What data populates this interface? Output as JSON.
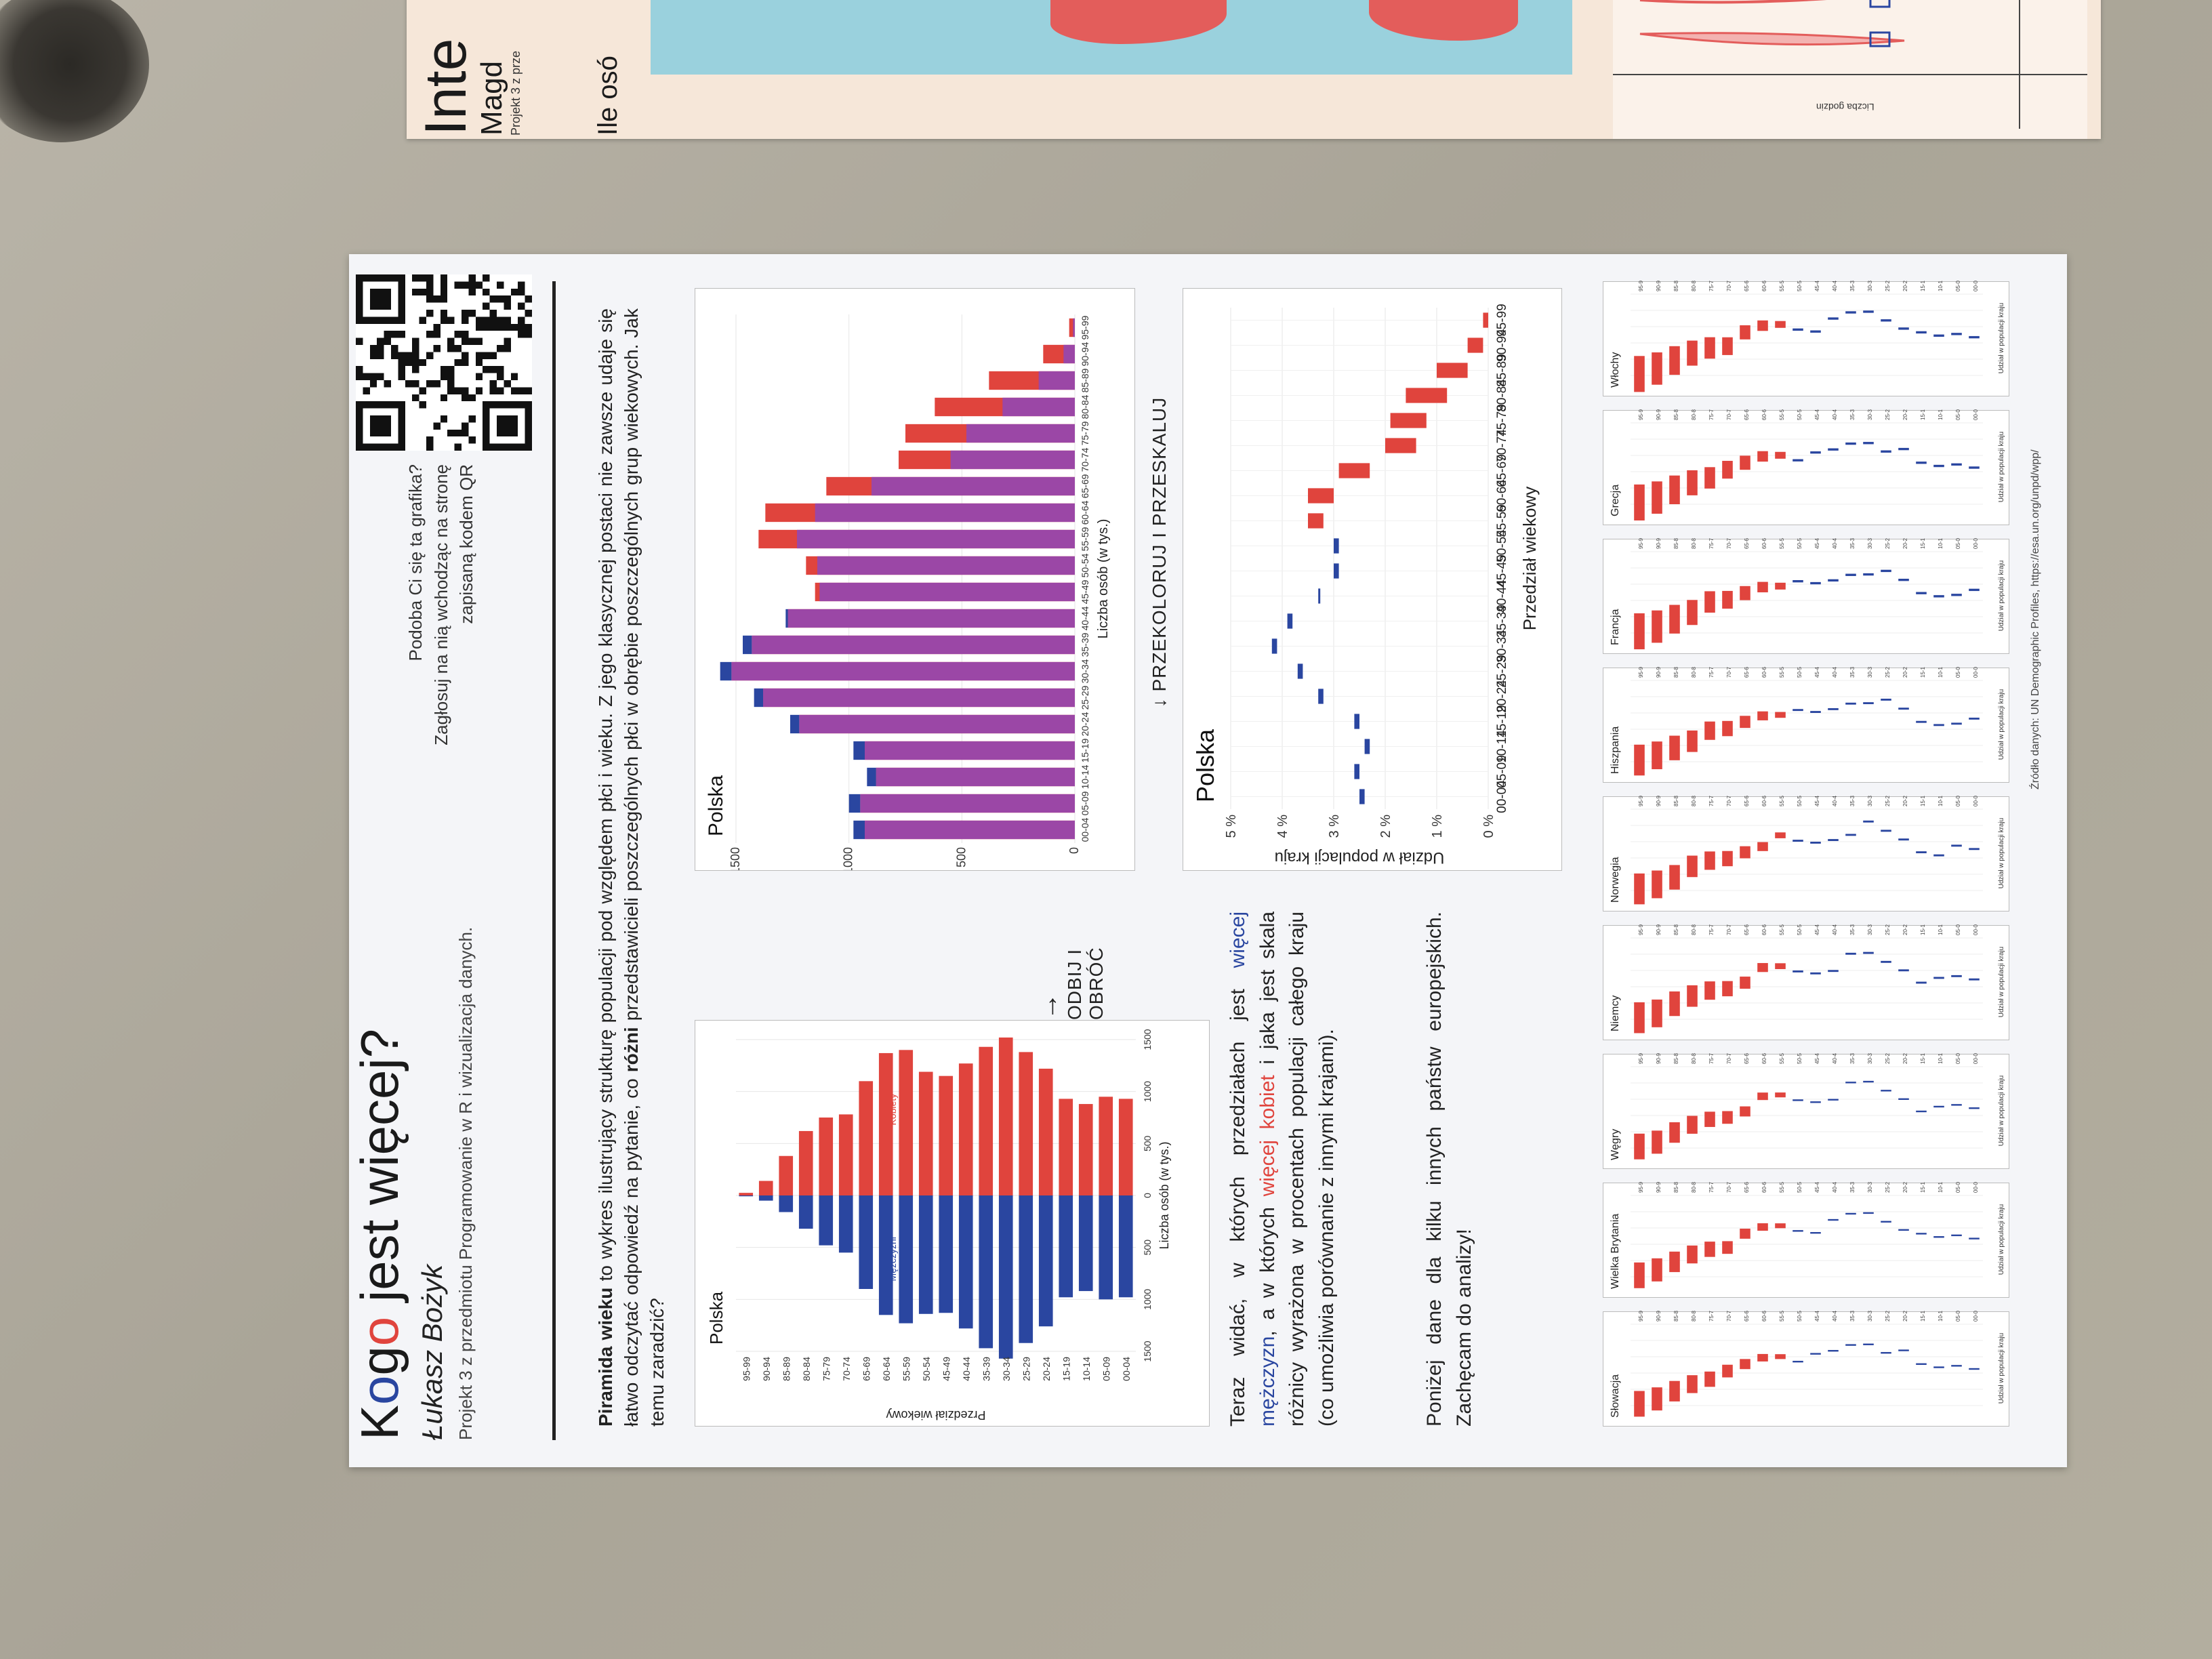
{
  "poster": {
    "title_pre": "K",
    "title_g1": "o",
    "title_g2": "g",
    "title_g3": "o",
    "title_post": " jest więcej?",
    "author": "Łukasz Bożyk",
    "subtitle": "Projekt 3 z przedmiotu Programowanie w R i wizualizacja danych.",
    "qr_text_1": "Podoba Ci się ta grafika?",
    "qr_text_2": "Zagłosuj na nią wchodząc na stronę",
    "qr_text_3": "zapisaną kodem QR",
    "intro_bold_1": "Piramida wieku",
    "intro_1": " to wykres ilustrujący strukturę populacji pod względem płci i wieku. Z jego klasycznej postaci nie zawsze udaje się łatwo odczytać odpowiedź na pytanie, co ",
    "intro_bold_2": "różni",
    "intro_2": " przedstawicieli poszczególnych płci w obrębie poszczególnych grup wiekowych. Jak temu zaradzić?",
    "arrow1": "ODBIJ I OBRÓĆ",
    "arrow2": "PRZEKOLORUJ I PRZESKALUJ",
    "text2_a": "Teraz widać, w których przedziałach jest ",
    "text2_m": "więcej mężczyzn",
    "text2_b": ", a w których ",
    "text2_k": "więcej kobiet",
    "text2_c": " i jaka jest skala różnicy wyrażona w procentach populacji całego kraju (co umożliwia porównanie z innymi krajami).",
    "text3": "Poniżej dane dla kilku innych państw europejskich. Zachęcam do analizy!",
    "source": "Źródło danych: UN Demographic Profiles, https://esa.un.org/unpd/wpp/"
  },
  "poster2": {
    "title": "Inte",
    "subtitle": "Magd",
    "subtitle2": "Projekt 3 z prze",
    "question": "Ile osó",
    "ylabel": "Liczba godzin"
  },
  "chart_data": [
    {
      "type": "bar",
      "title": "Polska",
      "xlabel": "Liczba osób (w tys.)",
      "ylabel": "Przedział wiekowy",
      "legend": [
        "Mężczyźni",
        "Kobiety"
      ],
      "categories": [
        "00-04",
        "05-09",
        "10-14",
        "15-19",
        "20-24",
        "25-29",
        "30-34",
        "35-39",
        "40-44",
        "45-49",
        "50-54",
        "55-59",
        "60-64",
        "65-69",
        "70-74",
        "75-79",
        "80-84",
        "85-89",
        "90-94",
        "95-99"
      ],
      "series": [
        {
          "name": "Mężczyźni",
          "color": "#2a46a0",
          "values": [
            980,
            1000,
            920,
            980,
            1260,
            1420,
            1570,
            1470,
            1280,
            1130,
            1140,
            1230,
            1150,
            900,
            550,
            480,
            320,
            160,
            50,
            8
          ]
        },
        {
          "name": "Kobiety",
          "color": "#e0443d",
          "values": [
            930,
            950,
            880,
            930,
            1220,
            1380,
            1520,
            1430,
            1270,
            1150,
            1190,
            1400,
            1370,
            1100,
            780,
            750,
            620,
            380,
            140,
            25
          ]
        }
      ],
      "xlim": [
        -1500,
        1500
      ]
    },
    {
      "type": "bar",
      "title": "Polska",
      "xlabel": "Liczba osób (w tys.)",
      "ylabel": "Przedział wiekowy",
      "categories": [
        "00-04",
        "05-09",
        "10-14",
        "15-19",
        "20-24",
        "25-29",
        "30-34",
        "35-39",
        "40-44",
        "45-49",
        "50-54",
        "55-59",
        "60-64",
        "65-69",
        "70-74",
        "75-79",
        "80-84",
        "85-89",
        "90-94",
        "95-99"
      ],
      "series": [
        {
          "name": "Mężczyźni",
          "color": "#2a46a0",
          "values": [
            980,
            1000,
            920,
            980,
            1260,
            1420,
            1570,
            1470,
            1280,
            1130,
            1140,
            1230,
            1150,
            900,
            550,
            480,
            320,
            160,
            50,
            8
          ]
        },
        {
          "name": "Kobiety",
          "color": "#e0443d",
          "values": [
            930,
            950,
            880,
            930,
            1220,
            1380,
            1520,
            1430,
            1270,
            1150,
            1190,
            1400,
            1370,
            1100,
            780,
            750,
            620,
            380,
            140,
            25
          ]
        }
      ],
      "ylim": [
        0,
        1500
      ],
      "ticks": [
        "0",
        "500",
        "1000",
        "1500"
      ]
    },
    {
      "type": "bar",
      "title": "Polska",
      "xlabel": "Przedział wiekowy",
      "ylabel": "Udział w populacji kraju",
      "categories": [
        "00-04",
        "05-09",
        "10-14",
        "15-19",
        "20-24",
        "25-29",
        "30-34",
        "35-39",
        "40-44",
        "45-49",
        "50-54",
        "55-59",
        "60-64",
        "65-69",
        "70-74",
        "75-79",
        "80-84",
        "85-89",
        "90-94",
        "95-99"
      ],
      "series": [
        {
          "name": "Mężczyźni",
          "color": "#2a46a0",
          "low": [
            2.4,
            2.5,
            2.3,
            2.5,
            3.2,
            3.6,
            4.1,
            3.8,
            3.3,
            2.9,
            2.9,
            3.2,
            3.0,
            2.3,
            1.4,
            1.2,
            0.8,
            0.4,
            0.1,
            0.0
          ],
          "high": [
            2.5,
            2.6,
            2.4,
            2.6,
            3.3,
            3.7,
            4.2,
            3.9,
            3.3,
            3.0,
            3.0,
            3.5,
            3.5,
            2.9,
            2.0,
            1.9,
            1.6,
            1.0,
            0.4,
            0.1
          ]
        }
      ],
      "ylim": [
        0,
        5
      ],
      "ticks": [
        "0 %",
        "1 %",
        "2 %",
        "3 %",
        "4 %",
        "5 %"
      ]
    }
  ],
  "small_multiples": [
    {
      "name": "Słowacja"
    },
    {
      "name": "Niemcy"
    },
    {
      "name": "Francja"
    },
    {
      "name": "Wielka Brytania"
    },
    {
      "name": "Norwegia"
    },
    {
      "name": "Grecja"
    },
    {
      "name": "Węgry"
    },
    {
      "name": "Hiszpania"
    },
    {
      "name": "Włochy"
    }
  ],
  "small_axis": {
    "ylabel": "Udział w populacji kraju",
    "xlabel": "Przedział wiekowy"
  }
}
